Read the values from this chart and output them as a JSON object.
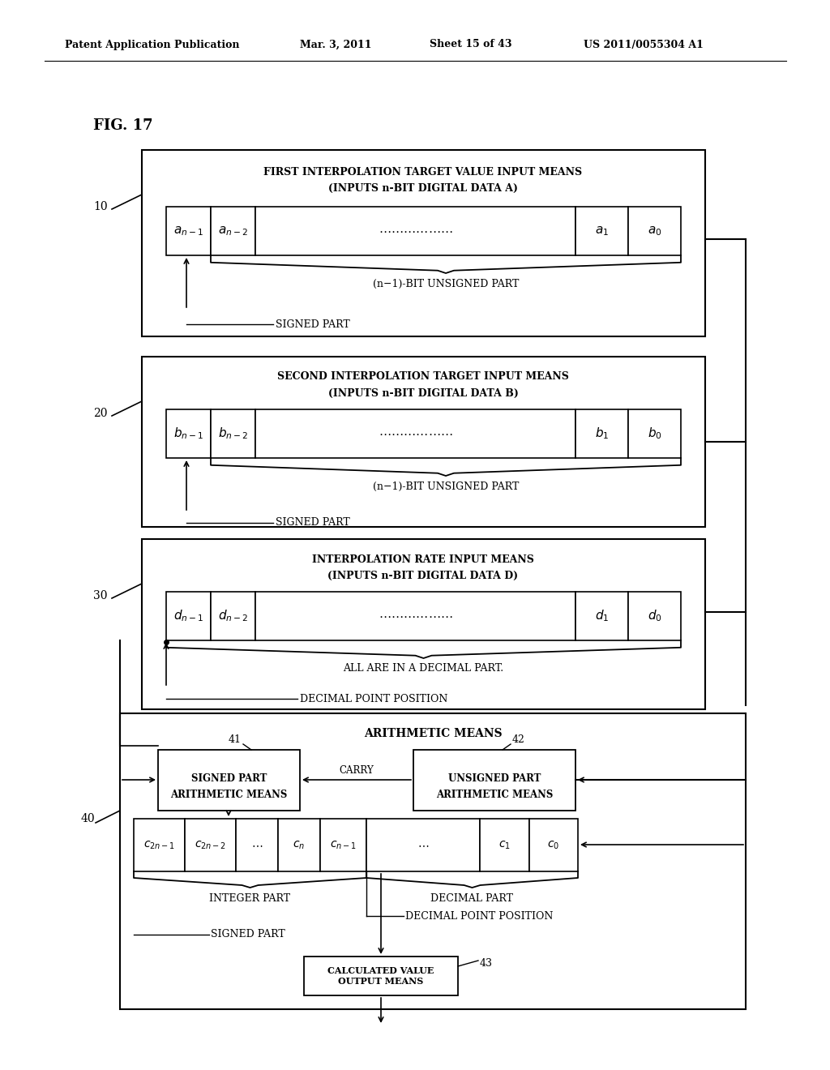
{
  "background_color": "#ffffff",
  "line_color": "#000000",
  "text_color": "#000000",
  "header1": "Patent Application Publication",
  "header2": "Mar. 3, 2011",
  "header3": "Sheet 15 of 43",
  "header4": "US 2011/0055304 A1",
  "fig_label": "FIG. 17",
  "b1_title1": "FIRST INTERPOLATION TARGET VALUE INPUT MEANS",
  "b1_title2": "(INPUTS n-BIT DIGITAL DATA A)",
  "b1_brace": "(n−1)-BIT UNSIGNED PART",
  "b1_signed": "SIGNED PART",
  "b2_title1": "SECOND INTERPOLATION TARGET INPUT MEANS",
  "b2_title2": "(INPUTS n-BIT DIGITAL DATA B)",
  "b2_brace": "(n−1)-BIT UNSIGNED PART",
  "b2_signed": "SIGNED PART",
  "b3_title1": "INTERPOLATION RATE INPUT MEANS",
  "b3_title2": "(INPUTS n-BIT DIGITAL DATA D)",
  "b3_brace": "ALL ARE IN A DECIMAL PART.",
  "b3_decimal": "DECIMAL POINT POSITION",
  "b4_title": "ARITHMETIC MEANS",
  "b41_t1": "SIGNED PART",
  "b41_t2": "ARITHMETIC MEANS",
  "carry": "CARRY",
  "b42_t1": "UNSIGNED PART",
  "b42_t2": "ARITHMETIC MEANS",
  "int_part": "INTEGER PART",
  "dec_part": "DECIMAL PART",
  "b4_decpoint": "DECIMAL POINT POSITION",
  "b4_signed": "SIGNED PART",
  "out_title": "CALCULATED VALUE\nOUTPUT MEANS"
}
